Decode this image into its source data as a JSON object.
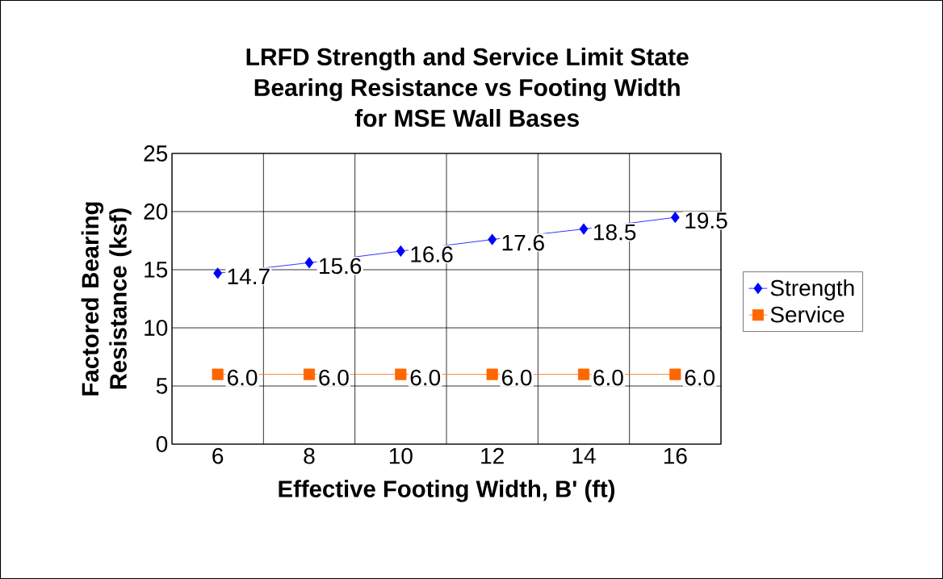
{
  "chart_data": {
    "type": "line",
    "title": "LRFD Strength and Service Limit State",
    "subtitle": "Bearing Resistance vs Footing Width for MSE Wall Bases",
    "xlabel": "Effective Footing Width, B' (ft)",
    "ylabel": "Factored Bearing Resistance (ksf)",
    "categories": [
      "6",
      "8",
      "10",
      "12",
      "14",
      "16"
    ],
    "series": [
      {
        "name": "Strength",
        "color": "#0000ff",
        "marker": "diamond",
        "values": [
          14.7,
          15.6,
          16.6,
          17.6,
          18.5,
          19.5
        ],
        "value_labels": [
          "14.7",
          "15.6",
          "16.6",
          "17.6",
          "18.5",
          "19.5"
        ]
      },
      {
        "name": "Service",
        "color": "#ff6600",
        "marker": "square",
        "values": [
          6.0,
          6.0,
          6.0,
          6.0,
          6.0,
          6.0
        ],
        "value_labels": [
          "6.0",
          "6.0",
          "6.0",
          "6.0",
          "6.0",
          "6.0"
        ]
      }
    ],
    "ylim": [
      0,
      25
    ],
    "yticks": [
      0,
      5,
      10,
      15,
      20,
      25
    ],
    "grid": true,
    "legend": "right"
  }
}
